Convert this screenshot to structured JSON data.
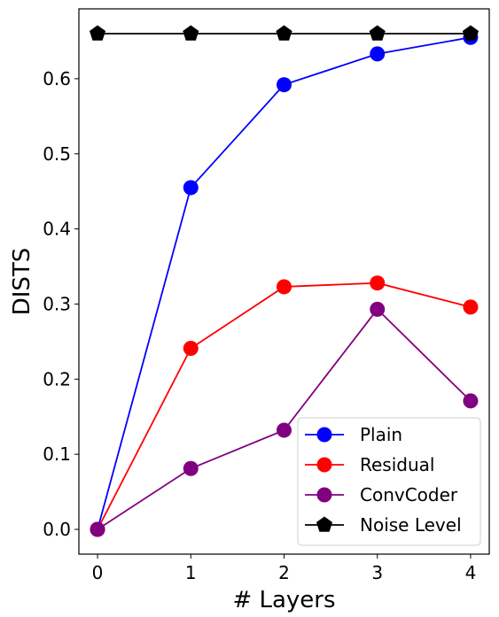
{
  "chart_data": {
    "type": "line",
    "xlabel": "# Layers",
    "ylabel": "DISTS",
    "x": [
      0,
      1,
      2,
      3,
      4
    ],
    "xlim": [
      -0.2,
      4.2
    ],
    "ylim": [
      -0.033,
      0.693
    ],
    "xticks": [
      0,
      1,
      2,
      3,
      4
    ],
    "yticks": [
      0.0,
      0.1,
      0.2,
      0.3,
      0.4,
      0.5,
      0.6
    ],
    "ytick_labels": [
      "0.0",
      "0.1",
      "0.2",
      "0.3",
      "0.4",
      "0.5",
      "0.6"
    ],
    "xtick_labels": [
      "0",
      "1",
      "2",
      "3",
      "4"
    ],
    "grid": false,
    "legend_position": "bottom-right",
    "series": [
      {
        "name": "Plain",
        "color": "#0000ff",
        "marker": "circle",
        "values": [
          0.0,
          0.455,
          0.592,
          0.633,
          0.655
        ]
      },
      {
        "name": "Residual",
        "color": "#ff0000",
        "marker": "circle",
        "values": [
          0.0,
          0.241,
          0.323,
          0.328,
          0.296
        ]
      },
      {
        "name": "ConvCoder",
        "color": "#800080",
        "marker": "circle",
        "values": [
          0.0,
          0.081,
          0.132,
          0.293,
          0.171
        ]
      },
      {
        "name": "Noise Level",
        "color": "#000000",
        "marker": "pentagon",
        "values": [
          0.66,
          0.66,
          0.66,
          0.66,
          0.66
        ]
      }
    ]
  }
}
